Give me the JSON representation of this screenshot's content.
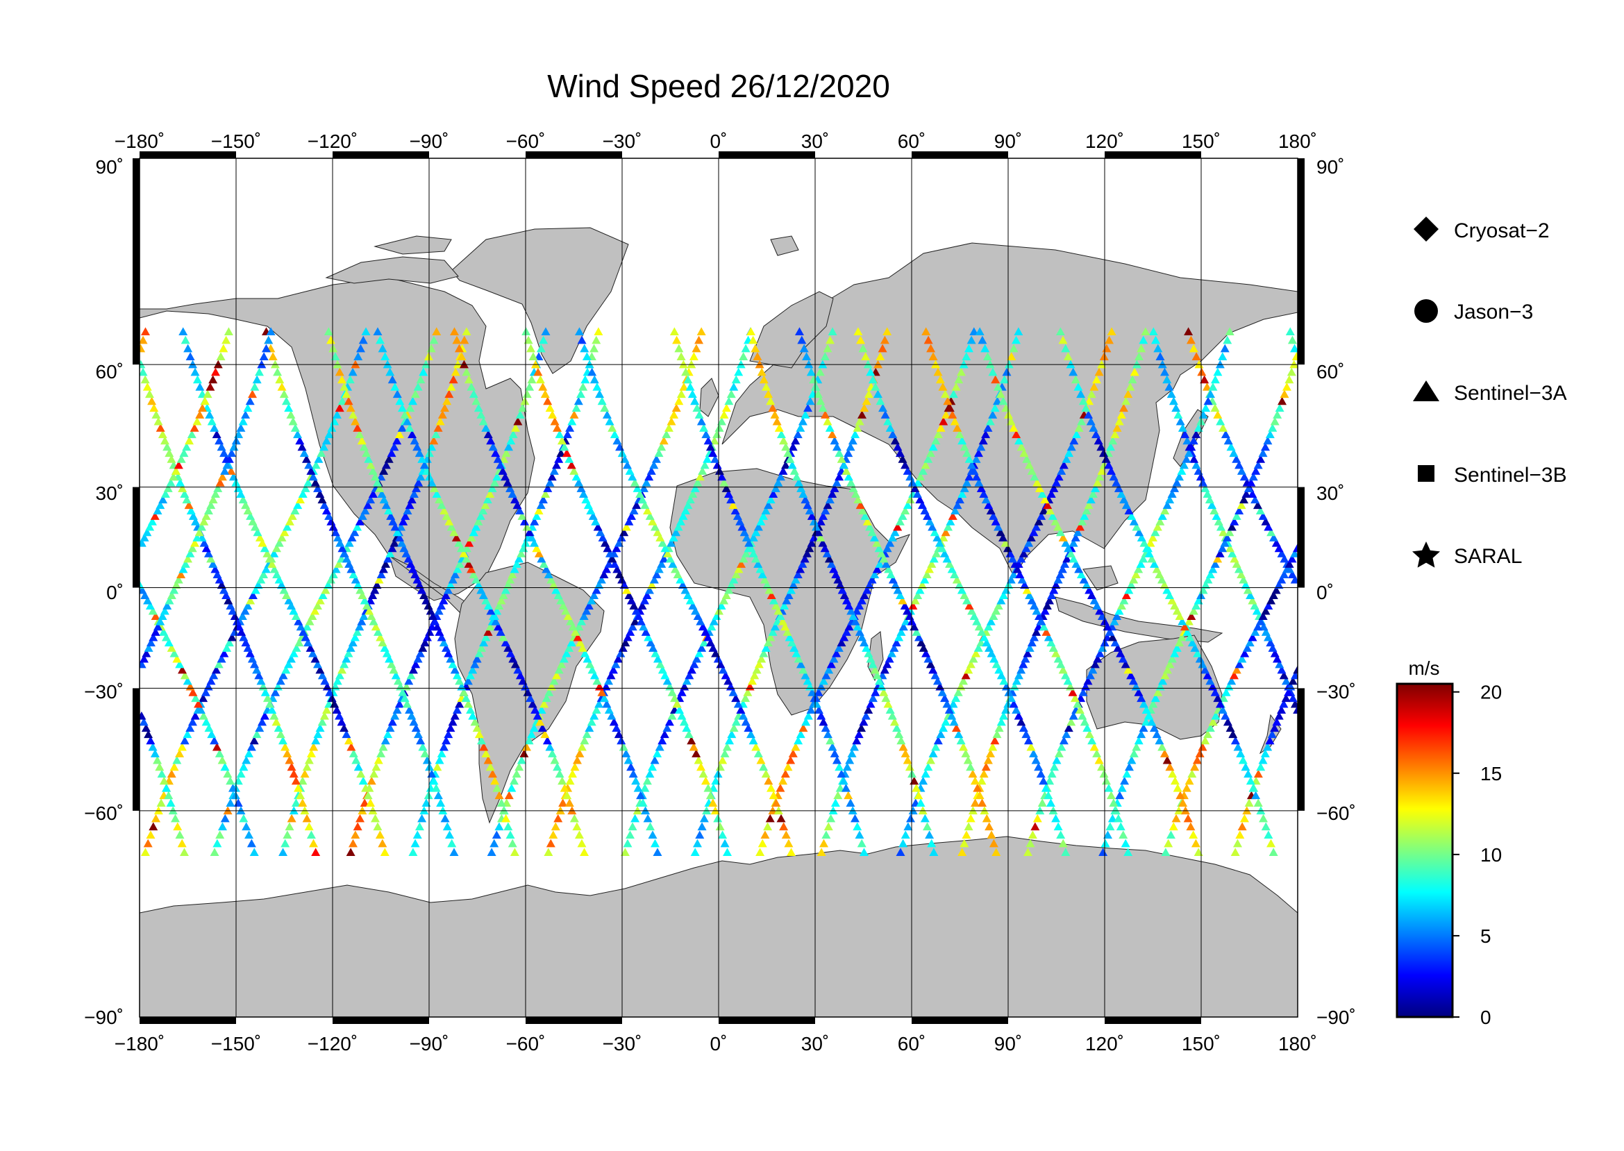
{
  "title": "Wind Speed 26/12/2020",
  "lon_ticks": [
    "−180˚",
    "−150˚",
    "−120˚",
    "−90˚",
    "−60˚",
    "−30˚",
    "0˚",
    "30˚",
    "60˚",
    "90˚",
    "120˚",
    "150˚",
    "180˚"
  ],
  "lat_ticks_left": [
    "90˚",
    "60˚",
    "30˚",
    "0˚",
    "−30˚",
    "−60˚",
    "−90˚"
  ],
  "lat_ticks_right": [
    "90˚",
    "60˚",
    "30˚",
    "0˚",
    "−30˚",
    "−60˚",
    "−90˚"
  ],
  "legend": [
    {
      "label": "Cryosat−2",
      "symbol": "diamond"
    },
    {
      "label": "Jason−3",
      "symbol": "circle"
    },
    {
      "label": "Sentinel−3A",
      "symbol": "triangle"
    },
    {
      "label": "Sentinel−3B",
      "symbol": "square"
    },
    {
      "label": "SARAL",
      "symbol": "star"
    }
  ],
  "colorbar": {
    "unit": "m/s",
    "min": 0,
    "max": 20.5,
    "ticks": [
      "0",
      "5",
      "10",
      "15",
      "20"
    ],
    "tick_values": [
      0,
      5,
      10,
      15,
      20
    ],
    "colors": [
      "#00007f",
      "#0000ff",
      "#007fff",
      "#00ffff",
      "#7fff7f",
      "#ffff00",
      "#ff7f00",
      "#ff0000",
      "#7f0000"
    ]
  },
  "map": {
    "land_color": "#c0c0c0",
    "ocean_color": "#ffffff",
    "lon_range": [
      -180,
      180
    ],
    "lat_range": [
      -90,
      90
    ],
    "grid_step_lon": 30,
    "grid_step_lat": 30,
    "grid": true
  }
}
